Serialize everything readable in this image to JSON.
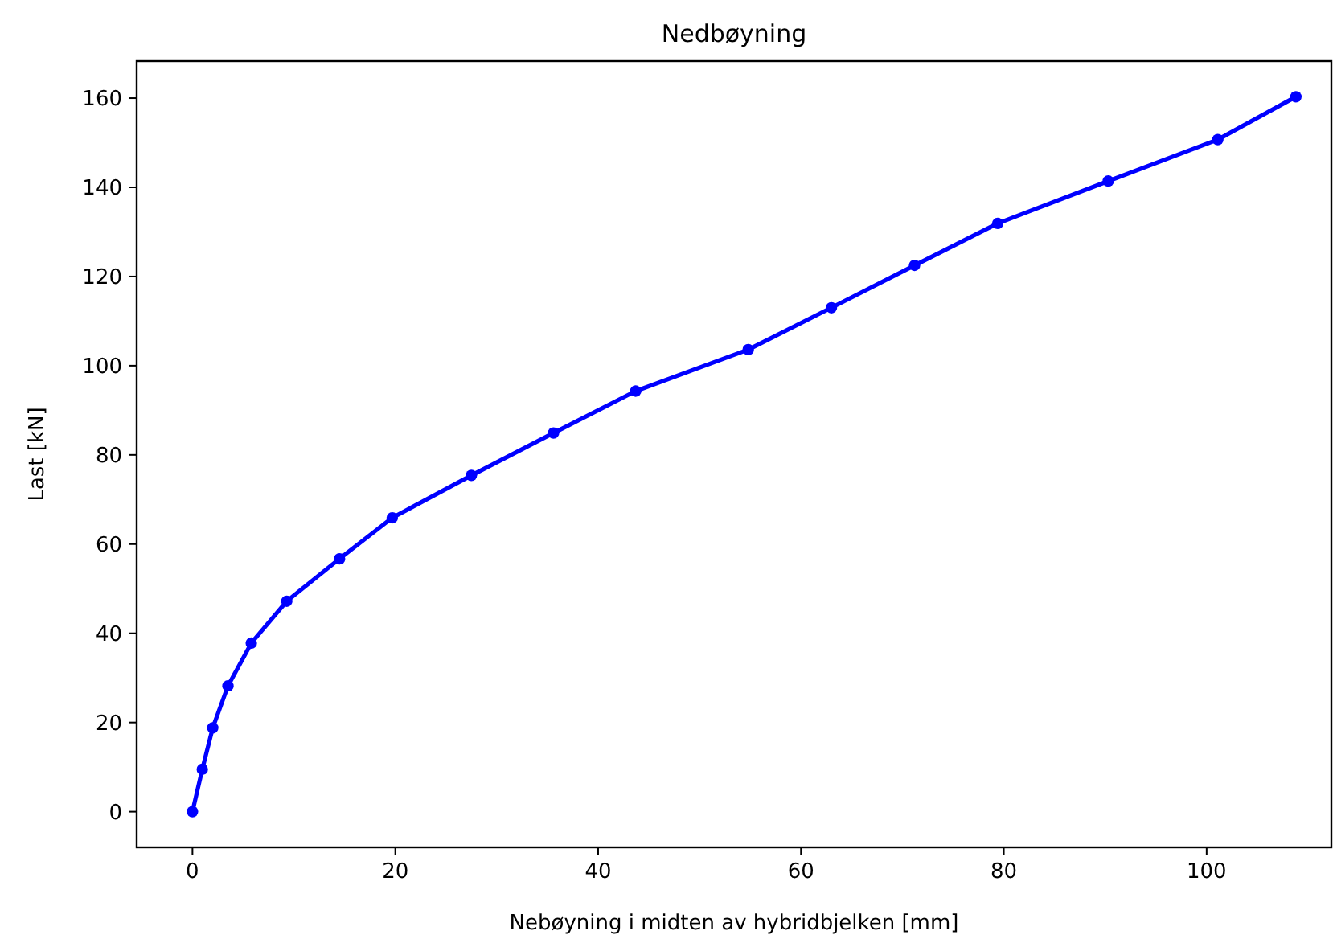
{
  "chart_data": {
    "type": "line",
    "title": "Nedbøyning",
    "xlabel": "Nebøyning i midten av hybridbjelken [mm]",
    "ylabel": "Last [kN]",
    "x": [
      0,
      0.97,
      2.0,
      3.5,
      5.8,
      9.3,
      14.5,
      19.7,
      27.5,
      35.6,
      43.7,
      54.8,
      63.0,
      71.2,
      79.4,
      90.3,
      101.1,
      108.8
    ],
    "series": [
      {
        "color": "#0000ff",
        "values": [
          0,
          9.5,
          18.8,
          28.2,
          37.8,
          47.2,
          56.7,
          65.9,
          75.4,
          84.9,
          94.3,
          103.6,
          113.0,
          122.5,
          131.9,
          141.4,
          150.7,
          160.3
        ]
      }
    ],
    "xlim": [
      -5.5,
      112.3
    ],
    "ylim": [
      -8,
      168.3
    ],
    "xticks": [
      0,
      20,
      40,
      60,
      80,
      100
    ],
    "yticks": [
      0,
      20,
      40,
      60,
      80,
      100,
      120,
      140,
      160
    ],
    "marker": "circle",
    "line_style": "solid",
    "grid": false
  }
}
